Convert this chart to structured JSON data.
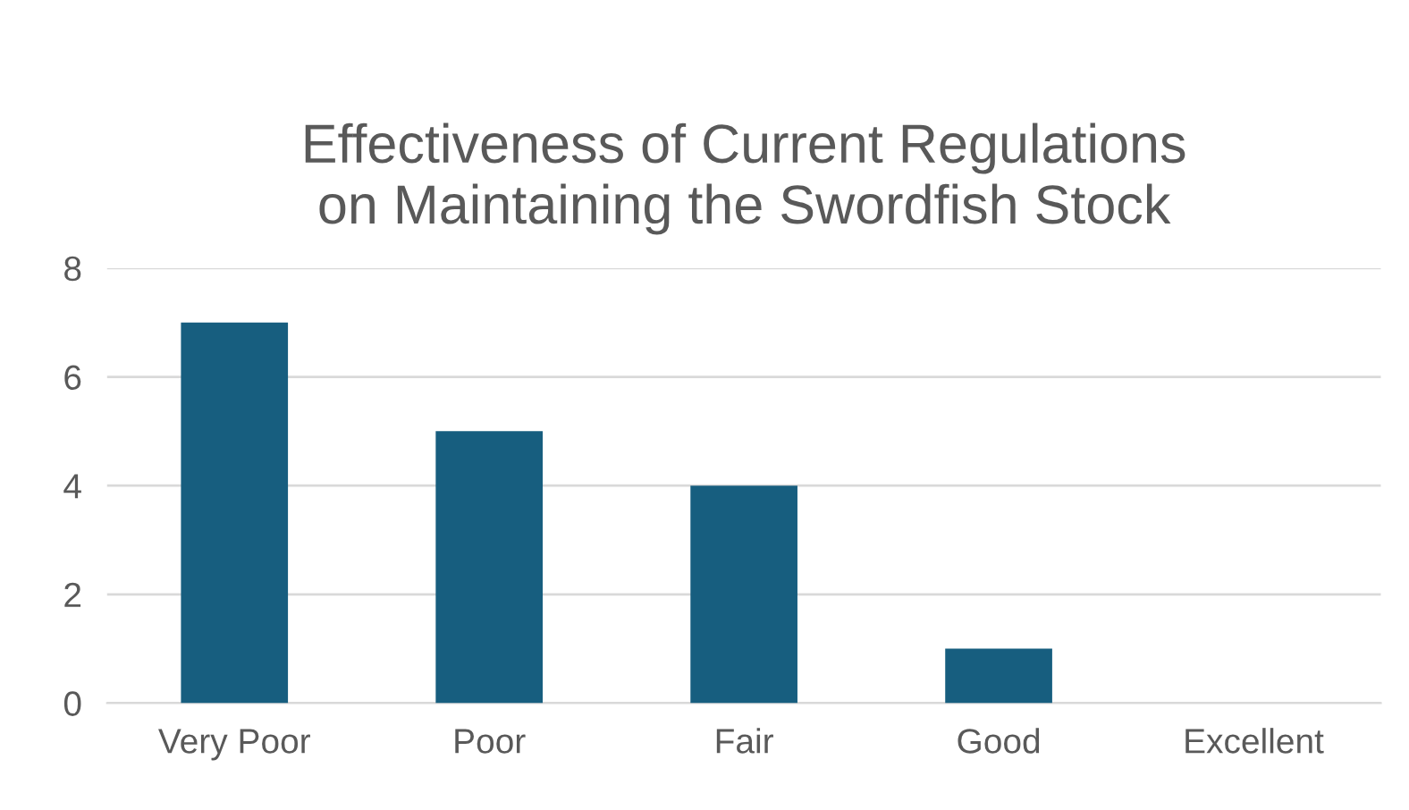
{
  "chart_data": {
    "type": "bar",
    "title": "Effectiveness of Current Regulations\non Maintaining the Swordfish Stock",
    "categories": [
      "Very Poor",
      "Poor",
      "Fair",
      "Good",
      "Excellent"
    ],
    "values": [
      7,
      5,
      4,
      1,
      0
    ],
    "color": "#175e7f",
    "ylim": [
      0,
      8
    ],
    "yticks": [
      0,
      2,
      4,
      6,
      8
    ],
    "grid": "y",
    "legend": false
  }
}
